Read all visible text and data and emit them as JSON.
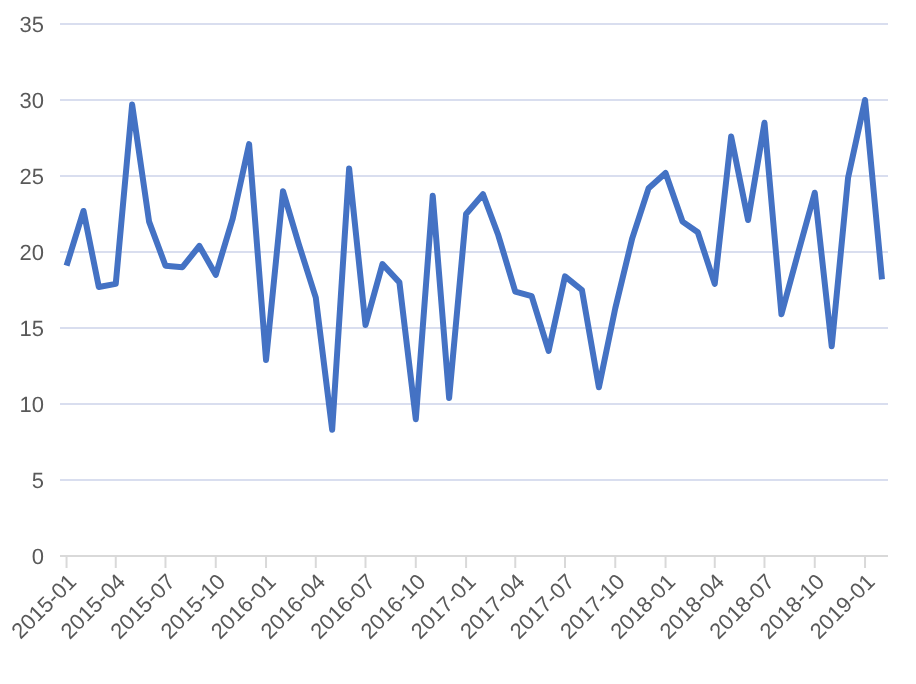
{
  "chart_data": {
    "type": "line",
    "x": [
      "2015-01",
      "2015-02",
      "2015-03",
      "2015-04",
      "2015-05",
      "2015-06",
      "2015-07",
      "2015-08",
      "2015-09",
      "2015-10",
      "2015-11",
      "2015-12",
      "2016-01",
      "2016-02",
      "2016-03",
      "2016-04",
      "2016-05",
      "2016-06",
      "2016-07",
      "2016-08",
      "2016-09",
      "2016-10",
      "2016-11",
      "2016-12",
      "2017-01",
      "2017-02",
      "2017-03",
      "2017-04",
      "2017-05",
      "2017-06",
      "2017-07",
      "2017-08",
      "2017-09",
      "2017-10",
      "2017-11",
      "2017-12",
      "2018-01",
      "2018-02",
      "2018-03",
      "2018-04",
      "2018-05",
      "2018-06",
      "2018-07",
      "2018-08",
      "2018-09",
      "2018-10",
      "2018-11",
      "2018-12",
      "2019-01",
      "2019-02"
    ],
    "series": [
      {
        "color": "#4472c4",
        "values": [
          19.1,
          22.7,
          17.7,
          17.9,
          29.7,
          22.0,
          19.1,
          19.0,
          20.4,
          18.5,
          22.2,
          27.1,
          12.9,
          24.0,
          20.5,
          17.0,
          8.3,
          25.5,
          15.2,
          19.2,
          18.0,
          9.0,
          23.7,
          10.4,
          22.5,
          23.8,
          21.1,
          17.4,
          17.1,
          13.5,
          18.4,
          17.5,
          11.1,
          16.3,
          20.9,
          24.2,
          25.2,
          22.0,
          21.3,
          17.9,
          27.6,
          22.1,
          28.5,
          15.9,
          20.0,
          23.9,
          13.8,
          24.9,
          30.0,
          18.2
        ]
      }
    ],
    "xlim": [
      "2014-12-20",
      "2019-02-12"
    ],
    "xticks": [
      "2015-01",
      "2015-04",
      "2015-07",
      "2015-10",
      "2016-01",
      "2016-04",
      "2016-07",
      "2016-10",
      "2017-01",
      "2017-04",
      "2017-07",
      "2017-10",
      "2018-01",
      "2018-04",
      "2018-07",
      "2018-10",
      "2019-01"
    ],
    "ylim": [
      0,
      35
    ],
    "yticks": [
      0,
      5,
      10,
      15,
      20,
      25,
      30,
      35
    ],
    "grid": "y",
    "legend": false,
    "marker": "none",
    "line_style": "solid"
  }
}
